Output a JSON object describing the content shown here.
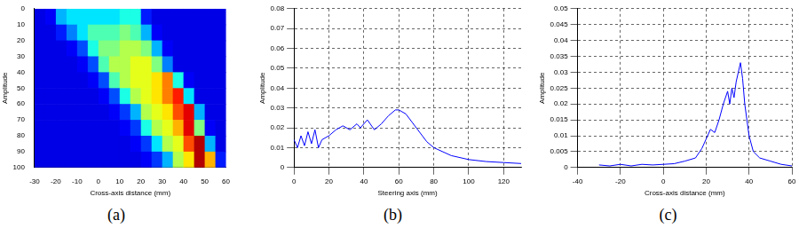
{
  "chart_data": [
    {
      "type": "heatmap",
      "label": "(a)",
      "xlabel": "Cross-axis distance (mm)",
      "ylabel": "Amplitude",
      "xlim": [
        -30,
        60
      ],
      "xticks": [
        -30,
        -20,
        -10,
        0,
        10,
        20,
        30,
        40,
        50,
        60
      ],
      "ylim": [
        0,
        100
      ],
      "yticks": [
        0,
        10,
        20,
        30,
        40,
        50,
        60,
        70,
        80,
        90,
        100
      ],
      "grid": false,
      "zlim": [
        0,
        1
      ],
      "x_edges": [
        -30,
        -25,
        -20,
        -15,
        -10,
        -5,
        0,
        5,
        10,
        15,
        20,
        25,
        30,
        35,
        40,
        45,
        50,
        55,
        60
      ],
      "y_edges": [
        0,
        10,
        20,
        30,
        40,
        50,
        60,
        70,
        80,
        90,
        100
      ],
      "cells": [
        [
          0.1,
          0.12,
          0.3,
          0.35,
          0.35,
          0.35,
          0.35,
          0.35,
          0.4,
          0.4,
          0.15,
          0.1,
          0.1,
          0.1,
          0.1,
          0.1,
          0.1,
          0.1
        ],
        [
          0.1,
          0.1,
          0.15,
          0.25,
          0.35,
          0.45,
          0.45,
          0.45,
          0.5,
          0.45,
          0.3,
          0.12,
          0.1,
          0.1,
          0.1,
          0.1,
          0.1,
          0.1
        ],
        [
          0.1,
          0.1,
          0.1,
          0.12,
          0.2,
          0.4,
          0.5,
          0.5,
          0.55,
          0.55,
          0.5,
          0.3,
          0.12,
          0.1,
          0.1,
          0.1,
          0.1,
          0.1
        ],
        [
          0.1,
          0.1,
          0.1,
          0.1,
          0.12,
          0.2,
          0.45,
          0.55,
          0.55,
          0.6,
          0.6,
          0.5,
          0.25,
          0.1,
          0.1,
          0.1,
          0.1,
          0.1
        ],
        [
          0.1,
          0.1,
          0.1,
          0.1,
          0.1,
          0.12,
          0.2,
          0.45,
          0.55,
          0.6,
          0.6,
          0.65,
          0.75,
          0.4,
          0.12,
          0.1,
          0.1,
          0.1
        ],
        [
          0.1,
          0.1,
          0.1,
          0.1,
          0.1,
          0.1,
          0.12,
          0.2,
          0.4,
          0.55,
          0.6,
          0.65,
          0.75,
          0.85,
          0.35,
          0.1,
          0.1,
          0.1
        ],
        [
          0.1,
          0.1,
          0.1,
          0.1,
          0.1,
          0.1,
          0.1,
          0.12,
          0.18,
          0.3,
          0.55,
          0.6,
          0.65,
          0.8,
          0.9,
          0.3,
          0.1,
          0.1
        ],
        [
          0.1,
          0.1,
          0.1,
          0.1,
          0.1,
          0.1,
          0.1,
          0.1,
          0.12,
          0.18,
          0.4,
          0.55,
          0.6,
          0.7,
          0.9,
          0.5,
          0.12,
          0.1
        ],
        [
          0.1,
          0.1,
          0.1,
          0.1,
          0.1,
          0.1,
          0.1,
          0.1,
          0.1,
          0.12,
          0.18,
          0.35,
          0.55,
          0.6,
          0.8,
          0.95,
          0.3,
          0.1
        ],
        [
          0.1,
          0.1,
          0.1,
          0.1,
          0.1,
          0.1,
          0.1,
          0.1,
          0.1,
          0.1,
          0.12,
          0.18,
          0.3,
          0.55,
          0.65,
          0.95,
          0.7,
          0.15
        ]
      ]
    },
    {
      "type": "line",
      "label": "(b)",
      "xlabel": "Steering axis (mm)",
      "ylabel": "Amplitude",
      "xlim": [
        0,
        130
      ],
      "xticks": [
        0,
        20,
        40,
        60,
        80,
        100,
        120
      ],
      "ylim": [
        0,
        0.08
      ],
      "yticks": [
        0,
        0.01,
        0.02,
        0.03,
        0.04,
        0.05,
        0.06,
        0.07,
        0.08
      ],
      "grid": true,
      "color": "#0000ff",
      "x": [
        0,
        2,
        4,
        6,
        8,
        10,
        12,
        14,
        16,
        20,
        24,
        28,
        32,
        36,
        38,
        42,
        46,
        50,
        54,
        58,
        60,
        64,
        70,
        76,
        80,
        90,
        100,
        110,
        120,
        130
      ],
      "values": [
        0.014,
        0.01,
        0.016,
        0.011,
        0.018,
        0.012,
        0.019,
        0.01,
        0.014,
        0.016,
        0.019,
        0.021,
        0.019,
        0.022,
        0.02,
        0.024,
        0.019,
        0.022,
        0.026,
        0.029,
        0.029,
        0.027,
        0.02,
        0.013,
        0.01,
        0.006,
        0.004,
        0.003,
        0.0025,
        0.002
      ]
    },
    {
      "type": "line",
      "label": "(c)",
      "xlabel": "Cross-axis distance (mm)",
      "ylabel": "Amplitude",
      "xlim": [
        -40,
        60
      ],
      "xticks": [
        -40,
        -20,
        0,
        20,
        40,
        60
      ],
      "ylim": [
        0,
        0.05
      ],
      "yticks": [
        0,
        0.005,
        0.01,
        0.015,
        0.02,
        0.025,
        0.03,
        0.035,
        0.04,
        0.045,
        0.05
      ],
      "grid": true,
      "color": "#0000ff",
      "x": [
        -30,
        -25,
        -20,
        -15,
        -10,
        -5,
        0,
        5,
        10,
        15,
        18,
        20,
        22,
        24,
        26,
        28,
        30,
        31,
        32,
        33,
        34,
        35,
        36,
        37,
        38,
        40,
        42,
        45,
        50,
        55,
        60
      ],
      "values": [
        0.0008,
        0.0005,
        0.001,
        0.0005,
        0.001,
        0.0008,
        0.001,
        0.0012,
        0.002,
        0.003,
        0.006,
        0.009,
        0.012,
        0.011,
        0.015,
        0.02,
        0.024,
        0.02,
        0.025,
        0.022,
        0.027,
        0.03,
        0.033,
        0.028,
        0.02,
        0.01,
        0.005,
        0.003,
        0.002,
        0.001,
        0.0005
      ]
    }
  ]
}
